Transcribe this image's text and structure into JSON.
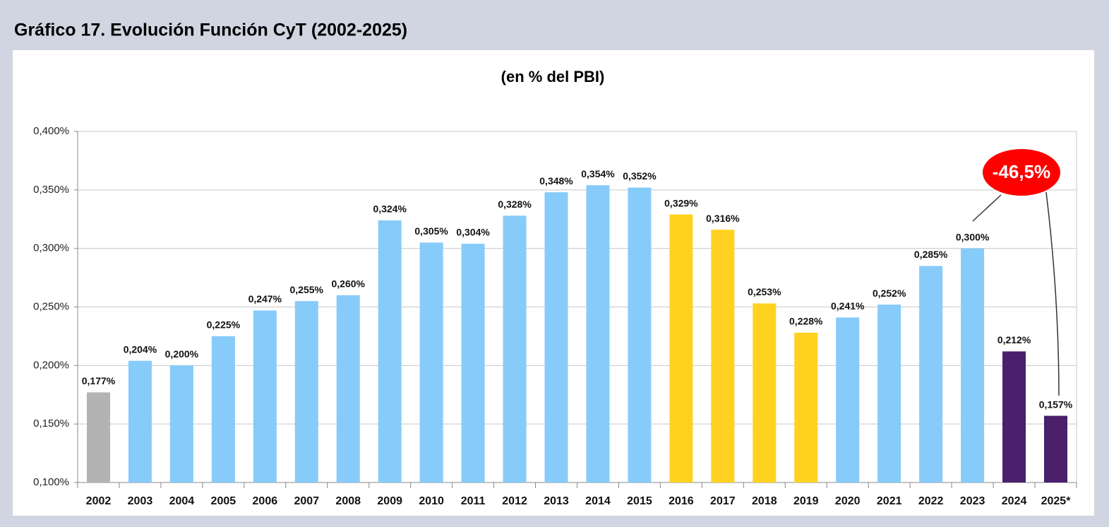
{
  "chart_data": {
    "type": "bar",
    "title": "Gráfico 17. Evolución Función CyT (2002-2025)",
    "subtitle": "(en % del PBI)",
    "categories": [
      "2002",
      "2003",
      "2004",
      "2005",
      "2006",
      "2007",
      "2008",
      "2009",
      "2010",
      "2011",
      "2012",
      "2013",
      "2014",
      "2015",
      "2016",
      "2017",
      "2018",
      "2019",
      "2020",
      "2021",
      "2022",
      "2023",
      "2024",
      "2025*"
    ],
    "values": [
      0.177,
      0.204,
      0.2,
      0.225,
      0.247,
      0.255,
      0.26,
      0.324,
      0.305,
      0.304,
      0.328,
      0.348,
      0.354,
      0.352,
      0.329,
      0.316,
      0.253,
      0.228,
      0.241,
      0.252,
      0.285,
      0.3,
      0.212,
      0.157
    ],
    "value_labels": [
      "0,177%",
      "0,204%",
      "0,200%",
      "0,225%",
      "0,247%",
      "0,255%",
      "0,260%",
      "0,324%",
      "0,305%",
      "0,304%",
      "0,328%",
      "0,348%",
      "0,354%",
      "0,352%",
      "0,329%",
      "0,316%",
      "0,253%",
      "0,228%",
      "0,241%",
      "0,252%",
      "0,285%",
      "0,300%",
      "0,212%",
      "0,157%"
    ],
    "colors": [
      "#b3b3b3",
      "#87cbfa",
      "#87cbfa",
      "#87cbfa",
      "#87cbfa",
      "#87cbfa",
      "#87cbfa",
      "#87cbfa",
      "#87cbfa",
      "#87cbfa",
      "#87cbfa",
      "#87cbfa",
      "#87cbfa",
      "#87cbfa",
      "#ffd21f",
      "#ffd21f",
      "#ffd21f",
      "#ffd21f",
      "#87cbfa",
      "#87cbfa",
      "#87cbfa",
      "#87cbfa",
      "#4a1f6b",
      "#4a1f6b"
    ],
    "ylim": [
      0.1,
      0.4
    ],
    "yticks": [
      {
        "value": 0.1,
        "label": "0,100%"
      },
      {
        "value": 0.15,
        "label": "0,150%"
      },
      {
        "value": 0.2,
        "label": "0,200%"
      },
      {
        "value": 0.25,
        "label": "0,250%"
      },
      {
        "value": 0.3,
        "label": "0,300%"
      },
      {
        "value": 0.35,
        "label": "0,350%"
      },
      {
        "value": 0.4,
        "label": "0,400%"
      }
    ],
    "grid": true,
    "annotation": "-46,5%"
  }
}
